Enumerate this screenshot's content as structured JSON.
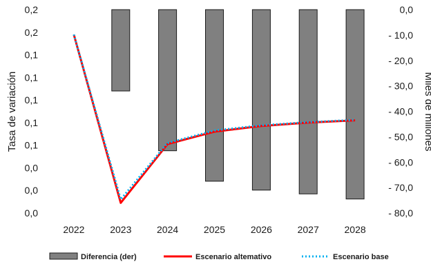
{
  "chart_data": {
    "type": "bar+line",
    "categories": [
      "2022",
      "2023",
      "2024",
      "2025",
      "2026",
      "2027",
      "2028"
    ],
    "left_axis": {
      "label": "Tasa de variación",
      "tick_labels": [
        "0,0",
        "0,0",
        "0,0",
        "0,1",
        "0,1",
        "0,1",
        "0,1",
        "0,1",
        "0,2",
        "0,2"
      ],
      "ylim": [
        0,
        9
      ]
    },
    "right_axis": {
      "label": "Miles de millones",
      "tick_labels": [
        "0,0",
        "- 10,0",
        "- 20,0",
        "- 30,0",
        "- 40,0",
        "- 50,0",
        "- 60,0",
        "- 70,0",
        "- 80,0"
      ],
      "ylim": [
        -80,
        0
      ]
    },
    "series": [
      {
        "name": "Diferencia (der)",
        "type": "bar",
        "axis": "right",
        "color": "#808080",
        "values": [
          null,
          -32,
          -55.5,
          -67.5,
          -71,
          -72.5,
          -74.5
        ]
      },
      {
        "name": "Escenario altemativo",
        "type": "line",
        "axis": "left",
        "color": "#ff0000",
        "values": [
          7.9,
          0.45,
          3.05,
          3.6,
          3.85,
          4.0,
          4.1
        ]
      },
      {
        "name": "Escenario base",
        "type": "line",
        "axis": "left",
        "style": "dotted",
        "color": "#00b0f0",
        "values": [
          7.9,
          0.6,
          3.1,
          3.65,
          3.88,
          4.02,
          4.12
        ]
      }
    ],
    "legend": {
      "position": "bottom"
    },
    "grid": false
  }
}
